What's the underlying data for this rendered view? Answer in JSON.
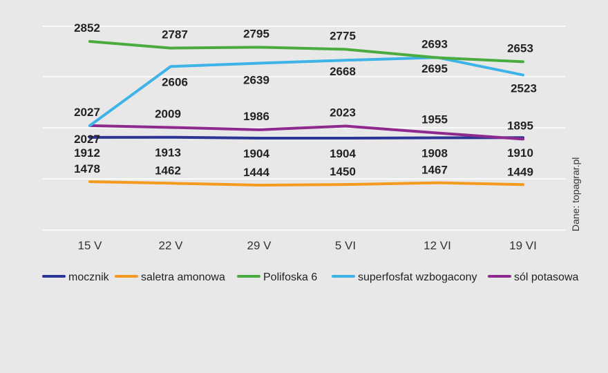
{
  "chart_data": {
    "type": "line",
    "title": "",
    "xlabel": "",
    "ylabel": "",
    "categories": [
      "15 V",
      "22 V",
      "29 V",
      "5 VI",
      "12 VI",
      "19 VI"
    ],
    "ylim": [
      1200,
      3100
    ],
    "grid": true,
    "legend_position": "bottom",
    "source": "Dane: topagrar.pl",
    "series": [
      {
        "name": "mocznik",
        "color": "#2b3596",
        "values": [
          1912,
          1913,
          1904,
          1904,
          1908,
          1910
        ]
      },
      {
        "name": "saletra amonowa",
        "color": "#f39a1f",
        "values": [
          1478,
          1462,
          1444,
          1450,
          1467,
          1449
        ]
      },
      {
        "name": "Polifoska 6",
        "color": "#4aab3f",
        "values": [
          2852,
          2787,
          2795,
          2775,
          2693,
          2653
        ]
      },
      {
        "name": "superfosfat wzbogacony",
        "color": "#3db3e8",
        "values": [
          2027,
          2606,
          2639,
          2668,
          2695,
          2523
        ]
      },
      {
        "name": "sól potasowa",
        "color": "#8e2a8e",
        "values": [
          2027,
          2009,
          1986,
          2023,
          1955,
          1895
        ]
      }
    ]
  }
}
